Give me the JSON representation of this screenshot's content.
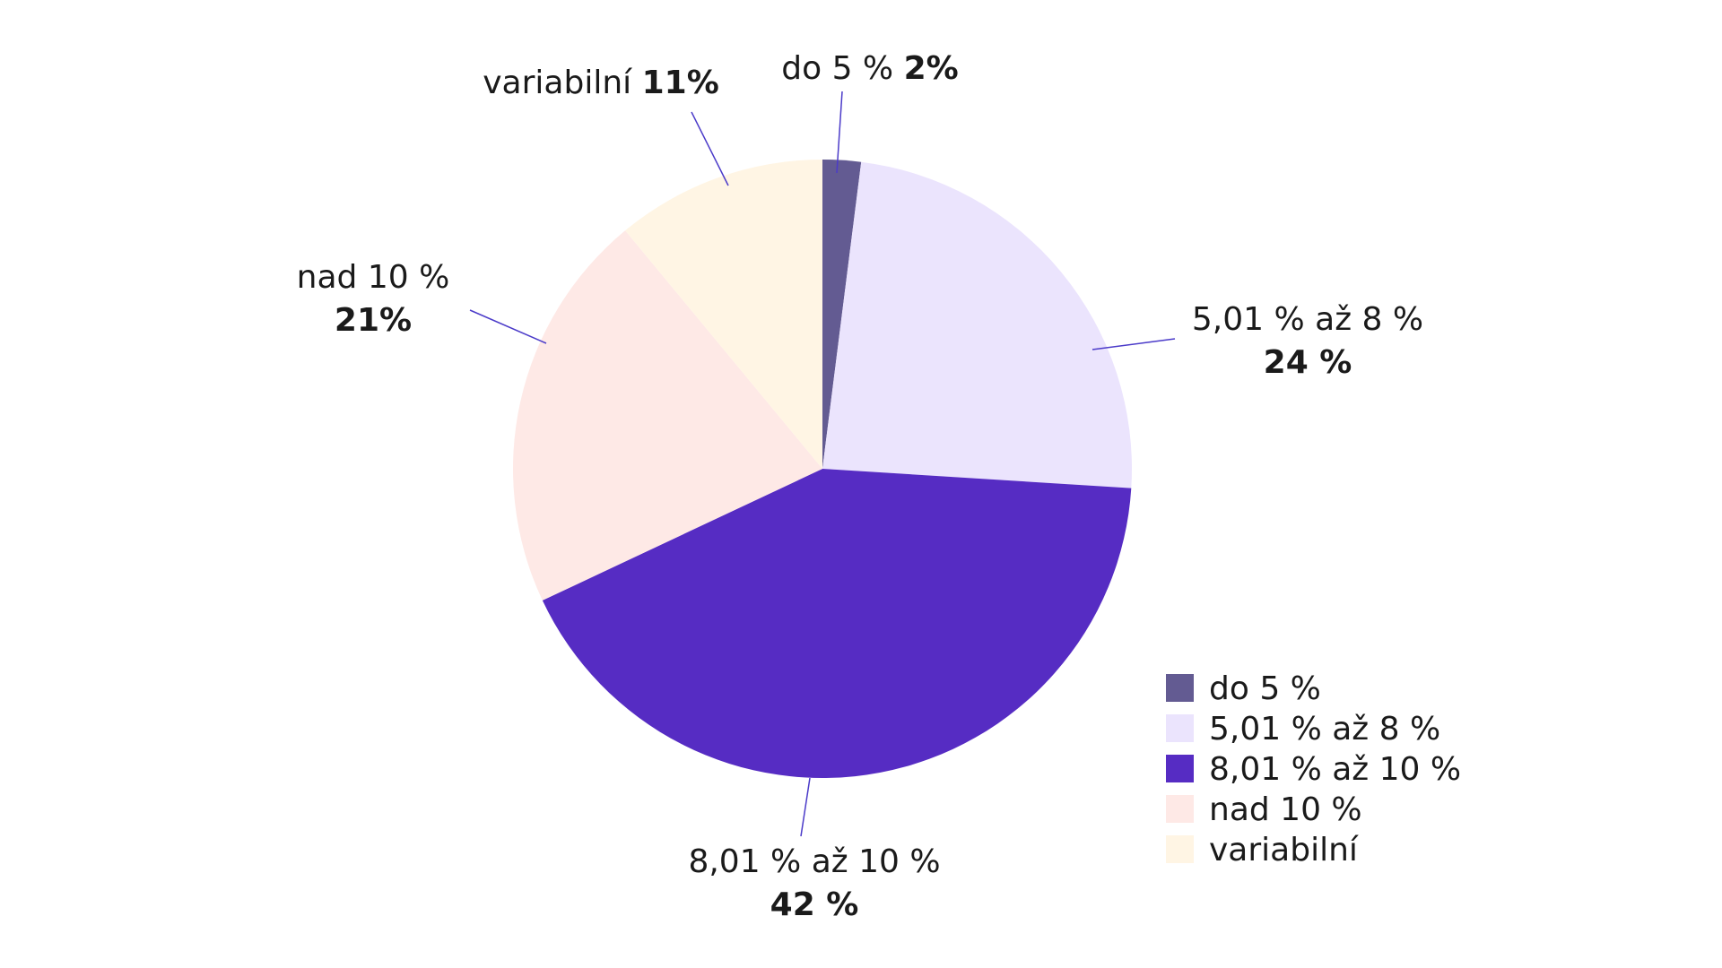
{
  "chart_data": {
    "type": "pie",
    "title": "",
    "slices": [
      {
        "name": "do 5 %",
        "value": 2,
        "value_label": "2%",
        "color": "#635b92",
        "label_layout": "inline"
      },
      {
        "name": "5,01 % až 8 %",
        "value": 24,
        "value_label": "24 %",
        "color": "#ebe4fd",
        "label_layout": "stacked"
      },
      {
        "name": "8,01 % až 10 %",
        "value": 42,
        "value_label": "42 %",
        "color": "#562cc3",
        "label_layout": "stacked"
      },
      {
        "name": "nad 10 %",
        "value": 21,
        "value_label": "21%",
        "color": "#fee9e6",
        "label_layout": "stacked"
      },
      {
        "name": "variabilní",
        "value": 11,
        "value_label": "11%",
        "color": "#fff5e4",
        "label_layout": "inline"
      }
    ],
    "leader_line_color": "#4b3bc9",
    "legend_position": "bottom-right"
  }
}
